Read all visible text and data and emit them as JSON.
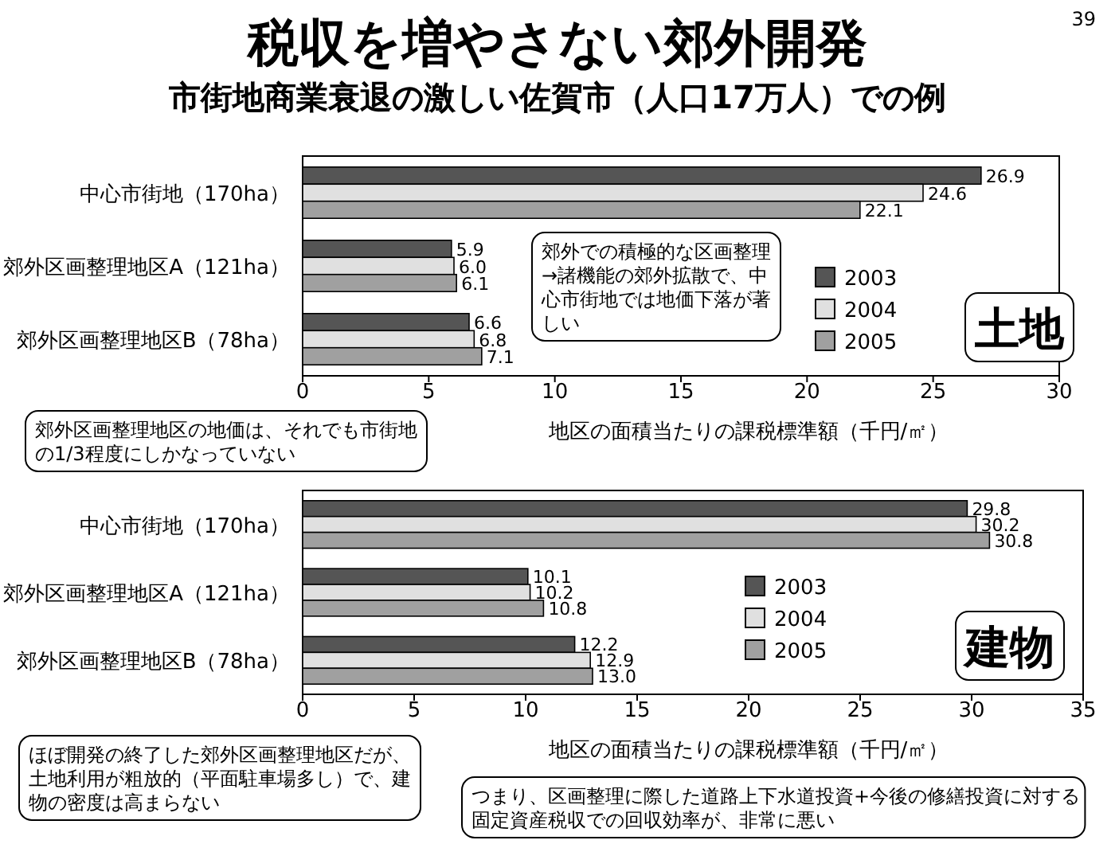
{
  "chart_data": [
    {
      "type": "bar",
      "orientation": "horizontal",
      "title": "税収を増やさない郊外開発",
      "subtitle": "市街地商業衰退の激しい佐賀市（人口17万人）での例",
      "categories": [
        "中心市街地（170ha）",
        "郊外区画整理地区A（121ha）",
        "郊外区画整理地区B（78ha）"
      ],
      "series": [
        {
          "name": "2003",
          "color": "#555555",
          "values": [
            26.9,
            5.9,
            6.6
          ],
          "value_labels": [
            "26.9",
            "5.9",
            "6.6"
          ]
        },
        {
          "name": "2004",
          "color": "#e0e0e0",
          "values": [
            24.6,
            6.0,
            6.8
          ],
          "value_labels": [
            "24.6",
            "6.0",
            "6.8"
          ]
        },
        {
          "name": "2005",
          "color": "#a0a0a0",
          "values": [
            22.1,
            6.1,
            7.1
          ],
          "value_labels": [
            "22.1",
            "6.1",
            "7.1"
          ]
        }
      ],
      "xlim": [
        0,
        30
      ],
      "xticks": [
        0,
        5,
        10,
        15,
        20,
        25,
        30
      ],
      "xlabel": "地区の面積当たりの課税標準額（千円/㎡）",
      "legend": "right",
      "annotations": [
        "39",
        "郊外での積極的な区画整理→諸機能の郊外拡散で、中心市街地では地価下落が著しい",
        "土地",
        "郊外区画整理地区の地価は、それでも市街地の1/3程度にしかなっていない"
      ]
    },
    {
      "type": "bar",
      "orientation": "horizontal",
      "categories": [
        "中心市街地（170ha）",
        "郊外区画整理地区A（121ha）",
        "郊外区画整理地区B（78ha）"
      ],
      "series": [
        {
          "name": "2003",
          "color": "#555555",
          "values": [
            29.8,
            10.1,
            12.2
          ],
          "value_labels": [
            "29.8",
            "10.1",
            "12.2"
          ]
        },
        {
          "name": "2004",
          "color": "#e0e0e0",
          "values": [
            30.2,
            10.2,
            12.9
          ],
          "value_labels": [
            "30.2",
            "10.2",
            "12.9"
          ]
        },
        {
          "name": "2005",
          "color": "#a0a0a0",
          "values": [
            30.8,
            10.8,
            13.0
          ],
          "value_labels": [
            "30.8",
            "10.8",
            "13.0"
          ]
        }
      ],
      "xlim": [
        0,
        35
      ],
      "xticks": [
        0,
        5,
        10,
        15,
        20,
        25,
        30,
        35
      ],
      "xlabel": "地区の面積当たりの課税標準額（千円/㎡）",
      "legend": "right",
      "annotations": [
        "建物",
        "ほぼ開発の終了した郊外区画整理地区だが、土地利用が粗放的（平面駐車場多し）で、建物の密度は高まらない",
        "つまり、区画整理に際した道路上下水道投資+今後の修繕投資に対する固定資産税収での回収効率が、非常に悪い"
      ]
    }
  ]
}
